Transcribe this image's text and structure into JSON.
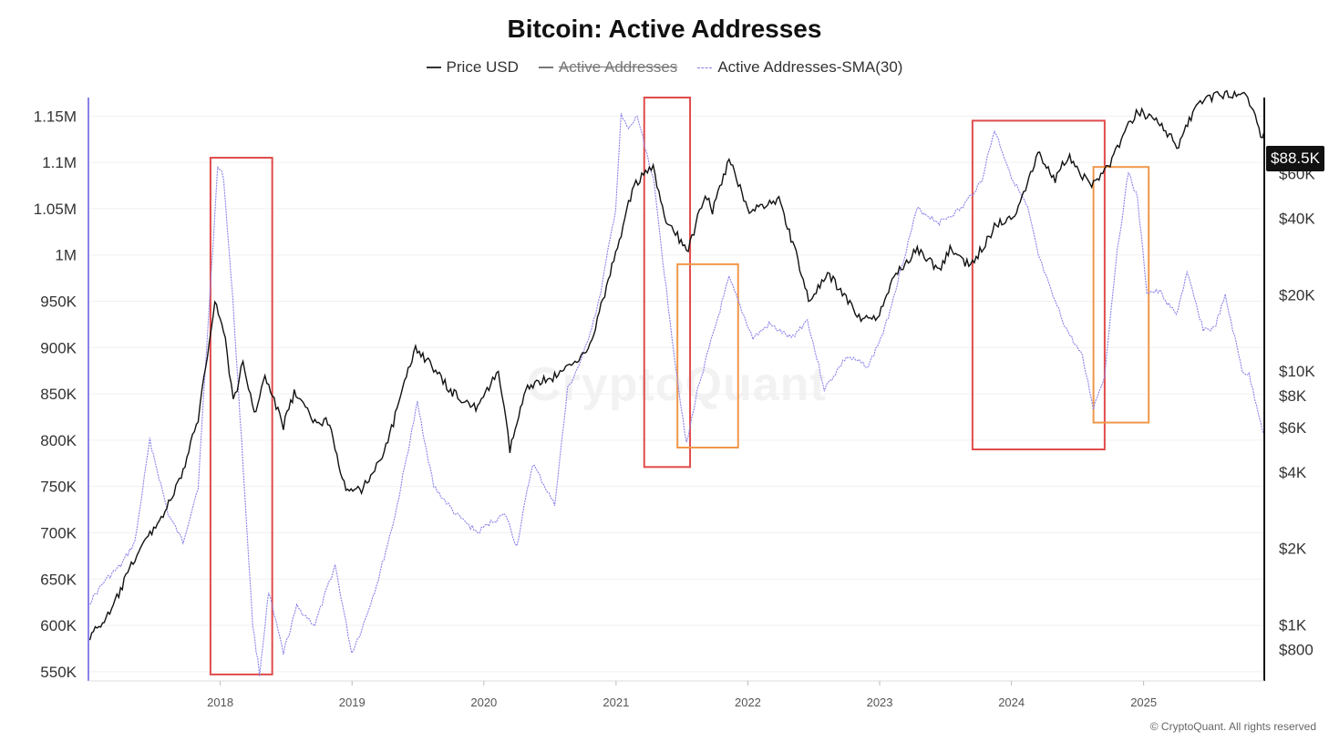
{
  "chart_data": {
    "type": "line",
    "title": "Bitcoin: Active Addresses",
    "legend": [
      {
        "name": "Price USD",
        "style": "solid",
        "color": "#111111",
        "visible": true
      },
      {
        "name": "Active Addresses",
        "style": "solid",
        "color": "#777777",
        "visible": false
      },
      {
        "name": "Active Addresses-SMA(30)",
        "style": "dotted",
        "color": "#8a82e8",
        "visible": true
      }
    ],
    "legend_position": "top-center",
    "x_axis": {
      "type": "date",
      "ticks": [
        "2018",
        "2019",
        "2020",
        "2021",
        "2022",
        "2023",
        "2024",
        "2025"
      ],
      "range": [
        "2017-01-01",
        "2025-12-01"
      ]
    },
    "y_left": {
      "ticks": [
        "1.15M",
        "1.1M",
        "1.05M",
        "1M",
        "950K",
        "900K",
        "850K",
        "800K",
        "750K",
        "700K",
        "650K",
        "600K",
        "550K"
      ],
      "range": [
        540000,
        1170000
      ]
    },
    "y_right": {
      "scale": "log",
      "ticks": [
        "$60K",
        "$40K",
        "$20K",
        "$10K",
        "$8K",
        "$6K",
        "$4K",
        "$2K",
        "$1K",
        "$800"
      ],
      "range": [
        600,
        120000
      ]
    },
    "current_price_label": "$88.5K",
    "series": [
      {
        "name": "Active Addresses-SMA(30)",
        "axis": "left",
        "points": [
          [
            "2017-01-05",
            625000
          ],
          [
            "2017-02-15",
            648000
          ],
          [
            "2017-04-01",
            665000
          ],
          [
            "2017-05-10",
            690000
          ],
          [
            "2017-06-20",
            800000
          ],
          [
            "2017-08-10",
            720000
          ],
          [
            "2017-09-20",
            690000
          ],
          [
            "2017-11-01",
            750000
          ],
          [
            "2017-12-10",
            1000000
          ],
          [
            "2017-12-25",
            1095000
          ],
          [
            "2018-01-10",
            1085000
          ],
          [
            "2018-02-05",
            950000
          ],
          [
            "2018-03-01",
            800000
          ],
          [
            "2018-04-01",
            600000
          ],
          [
            "2018-04-20",
            548000
          ],
          [
            "2018-05-15",
            635000
          ],
          [
            "2018-06-25",
            570000
          ],
          [
            "2018-08-01",
            620000
          ],
          [
            "2018-09-20",
            600000
          ],
          [
            "2018-11-15",
            665000
          ],
          [
            "2018-12-31",
            570000
          ],
          [
            "2019-02-01",
            600000
          ],
          [
            "2019-03-15",
            650000
          ],
          [
            "2019-05-01",
            720000
          ],
          [
            "2019-07-01",
            840000
          ],
          [
            "2019-08-15",
            750000
          ],
          [
            "2019-10-15",
            720000
          ],
          [
            "2019-12-15",
            700000
          ],
          [
            "2020-01-15",
            710000
          ],
          [
            "2020-03-01",
            720000
          ],
          [
            "2020-04-01",
            685000
          ],
          [
            "2020-05-15",
            775000
          ],
          [
            "2020-07-15",
            730000
          ],
          [
            "2020-08-20",
            855000
          ],
          [
            "2020-10-01",
            890000
          ],
          [
            "2020-11-15",
            950000
          ],
          [
            "2020-12-31",
            1050000
          ],
          [
            "2021-01-15",
            1150000
          ],
          [
            "2021-02-05",
            1135000
          ],
          [
            "2021-03-01",
            1150000
          ],
          [
            "2021-04-15",
            1080000
          ],
          [
            "2021-05-15",
            980000
          ],
          [
            "2021-06-15",
            880000
          ],
          [
            "2021-07-15",
            795000
          ],
          [
            "2021-08-15",
            855000
          ],
          [
            "2021-10-01",
            920000
          ],
          [
            "2021-11-10",
            975000
          ],
          [
            "2021-12-15",
            940000
          ],
          [
            "2022-01-15",
            910000
          ],
          [
            "2022-03-01",
            925000
          ],
          [
            "2022-05-01",
            910000
          ],
          [
            "2022-06-15",
            930000
          ],
          [
            "2022-08-01",
            855000
          ],
          [
            "2022-10-01",
            890000
          ],
          [
            "2022-12-01",
            880000
          ],
          [
            "2023-01-15",
            920000
          ],
          [
            "2023-03-01",
            985000
          ],
          [
            "2023-04-15",
            1050000
          ],
          [
            "2023-06-15",
            1035000
          ],
          [
            "2023-08-15",
            1050000
          ],
          [
            "2023-10-10",
            1080000
          ],
          [
            "2023-11-15",
            1135000
          ],
          [
            "2024-01-01",
            1085000
          ],
          [
            "2024-02-15",
            1050000
          ],
          [
            "2024-03-15",
            1000000
          ],
          [
            "2024-04-20",
            960000
          ],
          [
            "2024-06-01",
            920000
          ],
          [
            "2024-07-15",
            890000
          ],
          [
            "2024-08-15",
            835000
          ],
          [
            "2024-09-15",
            870000
          ],
          [
            "2024-10-15",
            990000
          ],
          [
            "2024-11-20",
            1090000
          ],
          [
            "2024-12-15",
            1060000
          ],
          [
            "2025-01-10",
            960000
          ],
          [
            "2025-02-15",
            960000
          ],
          [
            "2025-04-01",
            935000
          ],
          [
            "2025-05-01",
            980000
          ],
          [
            "2025-06-15",
            920000
          ],
          [
            "2025-07-15",
            920000
          ],
          [
            "2025-08-15",
            955000
          ],
          [
            "2025-10-01",
            875000
          ],
          [
            "2025-10-20",
            870000
          ],
          [
            "2025-12-01",
            805000
          ]
        ]
      },
      {
        "name": "Price USD",
        "axis": "right",
        "points": [
          [
            "2017-01-05",
            900
          ],
          [
            "2017-03-01",
            1100
          ],
          [
            "2017-05-15",
            1900
          ],
          [
            "2017-08-01",
            2800
          ],
          [
            "2017-09-15",
            3800
          ],
          [
            "2017-11-01",
            6500
          ],
          [
            "2017-12-17",
            19000
          ],
          [
            "2018-01-15",
            13500
          ],
          [
            "2018-02-06",
            7500
          ],
          [
            "2018-03-05",
            10800
          ],
          [
            "2018-04-05",
            6800
          ],
          [
            "2018-05-05",
            9500
          ],
          [
            "2018-06-25",
            6100
          ],
          [
            "2018-07-25",
            8200
          ],
          [
            "2018-09-15",
            6400
          ],
          [
            "2018-10-31",
            6300
          ],
          [
            "2018-12-15",
            3300
          ],
          [
            "2019-02-01",
            3450
          ],
          [
            "2019-04-05",
            5000
          ],
          [
            "2019-06-26",
            12500
          ],
          [
            "2019-08-15",
            10200
          ],
          [
            "2019-10-01",
            8300
          ],
          [
            "2019-12-15",
            7100
          ],
          [
            "2020-02-10",
            10100
          ],
          [
            "2020-03-13",
            4900
          ],
          [
            "2020-05-01",
            8800
          ],
          [
            "2020-07-25",
            9600
          ],
          [
            "2020-10-21",
            12500
          ],
          [
            "2020-12-31",
            29000
          ],
          [
            "2021-02-20",
            55000
          ],
          [
            "2021-04-14",
            63000
          ],
          [
            "2021-05-20",
            38000
          ],
          [
            "2021-06-20",
            34000
          ],
          [
            "2021-07-20",
            29700
          ],
          [
            "2021-09-05",
            51000
          ],
          [
            "2021-09-25",
            42500
          ],
          [
            "2021-11-10",
            68000
          ],
          [
            "2022-01-05",
            43000
          ],
          [
            "2022-03-28",
            47500
          ],
          [
            "2022-05-15",
            29000
          ],
          [
            "2022-06-18",
            19000
          ],
          [
            "2022-08-15",
            24000
          ],
          [
            "2022-11-10",
            16000
          ],
          [
            "2022-12-31",
            16500
          ],
          [
            "2023-02-15",
            24300
          ],
          [
            "2023-04-15",
            30300
          ],
          [
            "2023-06-15",
            25000
          ],
          [
            "2023-07-15",
            30300
          ],
          [
            "2023-09-10",
            25800
          ],
          [
            "2023-11-15",
            37000
          ],
          [
            "2024-01-15",
            42600
          ],
          [
            "2024-03-14",
            73000
          ],
          [
            "2024-05-01",
            57000
          ],
          [
            "2024-06-05",
            71000
          ],
          [
            "2024-08-05",
            54000
          ],
          [
            "2024-09-25",
            64000
          ],
          [
            "2024-11-15",
            90000
          ],
          [
            "2024-12-17",
            106000
          ],
          [
            "2025-02-15",
            96000
          ],
          [
            "2025-04-08",
            76000
          ],
          [
            "2025-05-22",
            110000
          ],
          [
            "2025-07-14",
            122000
          ],
          [
            "2025-08-14",
            123000
          ],
          [
            "2025-10-06",
            125000
          ],
          [
            "2025-11-01",
            110000
          ],
          [
            "2025-11-21",
            84000
          ],
          [
            "2025-12-01",
            88500
          ]
        ]
      }
    ],
    "annotations": [
      {
        "type": "box",
        "color": "#e04b4b",
        "x": [
          "2017-12-05",
          "2018-05-25"
        ],
        "y": [
          547000,
          1105000
        ],
        "axis": "left"
      },
      {
        "type": "box",
        "color": "#e04b4b",
        "x": [
          "2021-03-20",
          "2021-07-25"
        ],
        "y": [
          771000,
          1170000
        ],
        "axis": "left"
      },
      {
        "type": "box",
        "color": "#f0974a",
        "x": [
          "2021-06-20",
          "2021-12-05"
        ],
        "y": [
          792000,
          990000
        ],
        "axis": "left"
      },
      {
        "type": "box",
        "color": "#e04b4b",
        "x": [
          "2023-09-15",
          "2024-09-15"
        ],
        "y": [
          790000,
          1145000
        ],
        "axis": "left"
      },
      {
        "type": "box",
        "color": "#f0974a",
        "x": [
          "2024-08-15",
          "2025-01-15"
        ],
        "y": [
          819000,
          1095000
        ],
        "axis": "left"
      }
    ],
    "grid": true
  },
  "watermark": "CryptoQuant",
  "copyright": "© CryptoQuant. All rights reserved"
}
